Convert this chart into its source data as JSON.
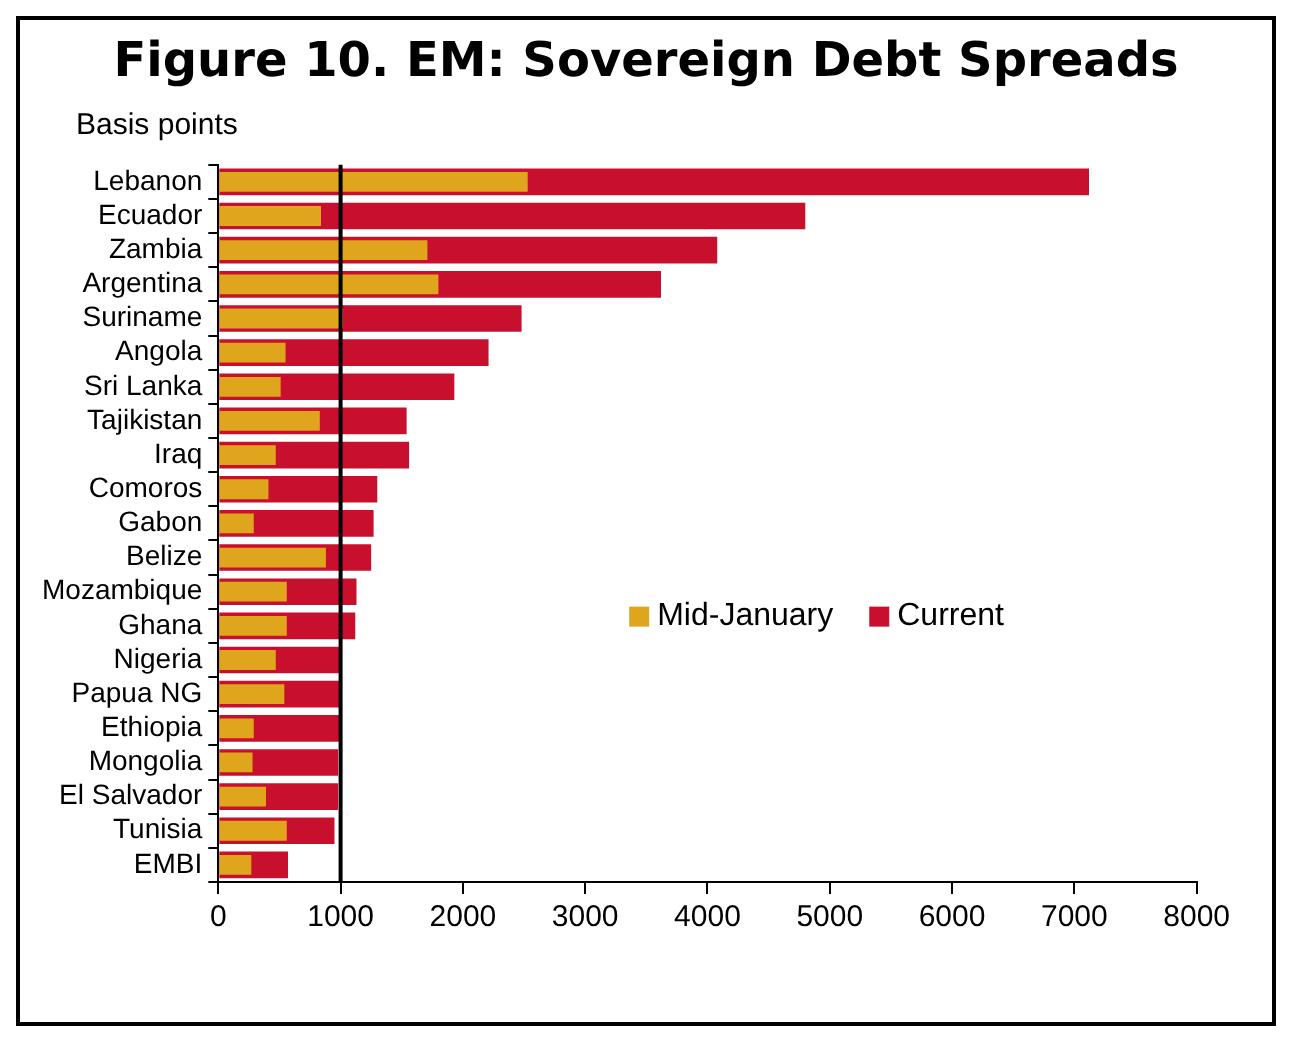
{
  "chart_data": {
    "type": "bar",
    "orientation": "horizontal",
    "title": "Figure 10. EM: Sovereign Debt Spreads",
    "xlabel": "Basis points",
    "categories": [
      "Lebanon",
      "Ecuador",
      "Zambia",
      "Argentina",
      "Suriname",
      "Angola",
      "Sri Lanka",
      "Tajikistan",
      "Iraq",
      "Comoros",
      "Gabon",
      "Belize",
      "Mozambique",
      "Ghana",
      "Nigeria",
      "Papua NG",
      "Ethiopia",
      "Mongolia",
      "El Salvador",
      "Tunisia",
      "EMBI"
    ],
    "series": [
      {
        "name": "Mid-January",
        "color": "#dfa51c",
        "values": [
          2530,
          840,
          1710,
          1800,
          1020,
          550,
          510,
          830,
          470,
          410,
          290,
          880,
          560,
          560,
          470,
          540,
          290,
          280,
          390,
          560,
          270
        ]
      },
      {
        "name": "Current",
        "color": "#c8102e",
        "values": [
          7120,
          4800,
          4080,
          3620,
          2480,
          2210,
          1930,
          1540,
          1560,
          1300,
          1270,
          1250,
          1130,
          1120,
          1000,
          1000,
          1000,
          980,
          980,
          950,
          570
        ]
      }
    ],
    "xlim": [
      0,
      8000
    ],
    "xticks": [
      0,
      1000,
      2000,
      3000,
      4000,
      5000,
      6000,
      7000,
      8000
    ],
    "ref_lines": [
      {
        "axis": "x",
        "value": 1000,
        "color": "#000000"
      }
    ],
    "legend": "right"
  }
}
